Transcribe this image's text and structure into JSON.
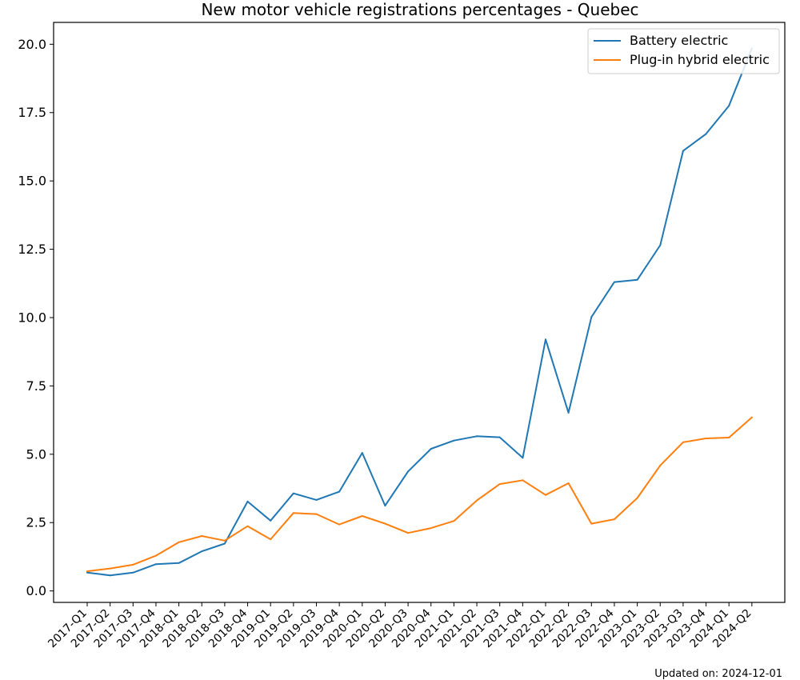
{
  "chart_data": {
    "type": "line",
    "title": "New motor vehicle registrations percentages - Quebec",
    "xlabel": "",
    "ylabel": "",
    "categories": [
      "2017-Q1",
      "2017-Q2",
      "2017-Q3",
      "2017-Q4",
      "2018-Q1",
      "2018-Q2",
      "2018-Q3",
      "2018-Q4",
      "2019-Q1",
      "2019-Q2",
      "2019-Q3",
      "2019-Q4",
      "2020-Q1",
      "2020-Q2",
      "2020-Q3",
      "2020-Q4",
      "2021-Q1",
      "2021-Q2",
      "2021-Q3",
      "2021-Q4",
      "2022-Q1",
      "2022-Q2",
      "2022-Q3",
      "2022-Q4",
      "2023-Q1",
      "2023-Q2",
      "2023-Q3",
      "2023-Q4",
      "2024-Q1",
      "2024-Q2"
    ],
    "series": [
      {
        "name": "Battery electric",
        "color": "#1f77b4",
        "values": [
          0.67,
          0.57,
          0.67,
          0.98,
          1.02,
          1.45,
          1.73,
          3.27,
          2.57,
          3.57,
          3.33,
          3.63,
          5.05,
          3.12,
          4.37,
          5.2,
          5.5,
          5.66,
          5.62,
          4.87,
          9.2,
          6.52,
          10.02,
          11.3,
          11.38,
          12.65,
          16.1,
          16.72,
          17.75,
          19.85
        ]
      },
      {
        "name": "Plug-in hybrid electric",
        "color": "#ff7f0e",
        "values": [
          0.72,
          0.82,
          0.96,
          1.29,
          1.78,
          2.01,
          1.84,
          2.37,
          1.89,
          2.85,
          2.81,
          2.43,
          2.74,
          2.46,
          2.12,
          2.3,
          2.56,
          3.31,
          3.91,
          4.05,
          3.51,
          3.94,
          2.46,
          2.62,
          3.4,
          4.59,
          5.44,
          5.58,
          5.61,
          6.35
        ]
      }
    ],
    "ylim": [
      -0.42,
      20.8
    ],
    "yticks": [
      0.0,
      2.5,
      5.0,
      7.5,
      10.0,
      12.5,
      15.0,
      17.5,
      20.0
    ],
    "ytick_labels": [
      "0.0",
      "2.5",
      "5.0",
      "7.5",
      "10.0",
      "12.5",
      "15.0",
      "17.5",
      "20.0"
    ],
    "grid": false,
    "legend_position": "top-right"
  },
  "footer": {
    "updated": "Updated on: 2024-12-01"
  }
}
